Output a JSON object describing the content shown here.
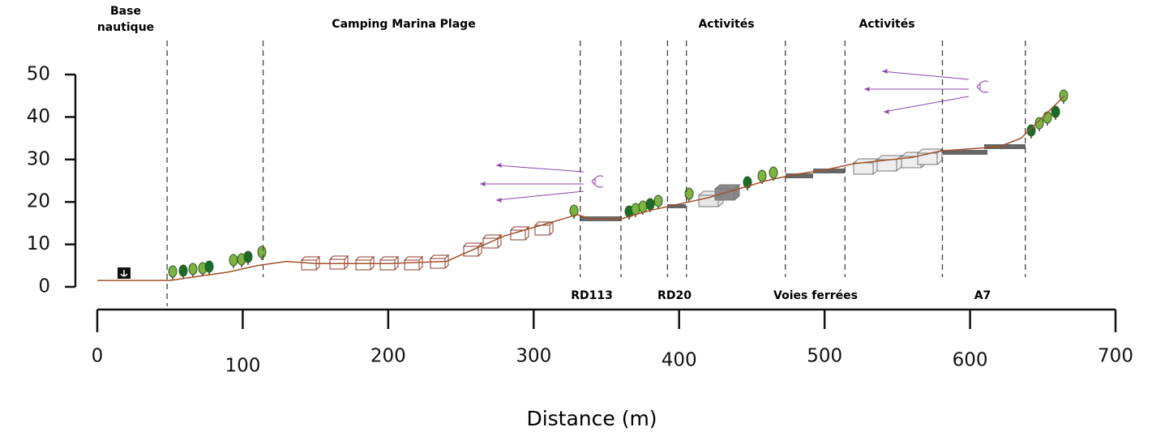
{
  "chart_data": {
    "type": "line",
    "x_label": "Distance (m)",
    "x": [
      0,
      50,
      70,
      90,
      110,
      130,
      150,
      200,
      240,
      260,
      280,
      300,
      320,
      330,
      340,
      360,
      380,
      400,
      420,
      440,
      460,
      480,
      500,
      520,
      560,
      580,
      620,
      635,
      650,
      665
    ],
    "values": [
      1.5,
      1.5,
      2.5,
      3.5,
      5,
      6,
      5.5,
      5.5,
      6,
      9,
      12,
      14,
      16,
      17,
      16,
      16,
      18,
      19.5,
      21,
      23,
      25,
      26.5,
      27.5,
      29,
      30.5,
      32,
      33,
      35,
      40,
      45
    ],
    "color": "#a0522d",
    "xlim": [
      0,
      700
    ],
    "xticks": [
      0,
      100,
      200,
      300,
      400,
      500,
      600,
      700
    ],
    "ylim": [
      0,
      50
    ],
    "yticks": [
      0,
      10,
      20,
      30,
      40,
      50
    ],
    "boundaries": [
      48,
      114,
      332,
      360,
      392,
      405,
      473,
      514,
      581,
      638
    ],
    "zones": [
      "Base nautique",
      "Camping Marina Plage",
      "Activités",
      "Activités"
    ],
    "roads": [
      "RD113",
      "RD20",
      "Voies ferrées",
      "A7"
    ]
  }
}
